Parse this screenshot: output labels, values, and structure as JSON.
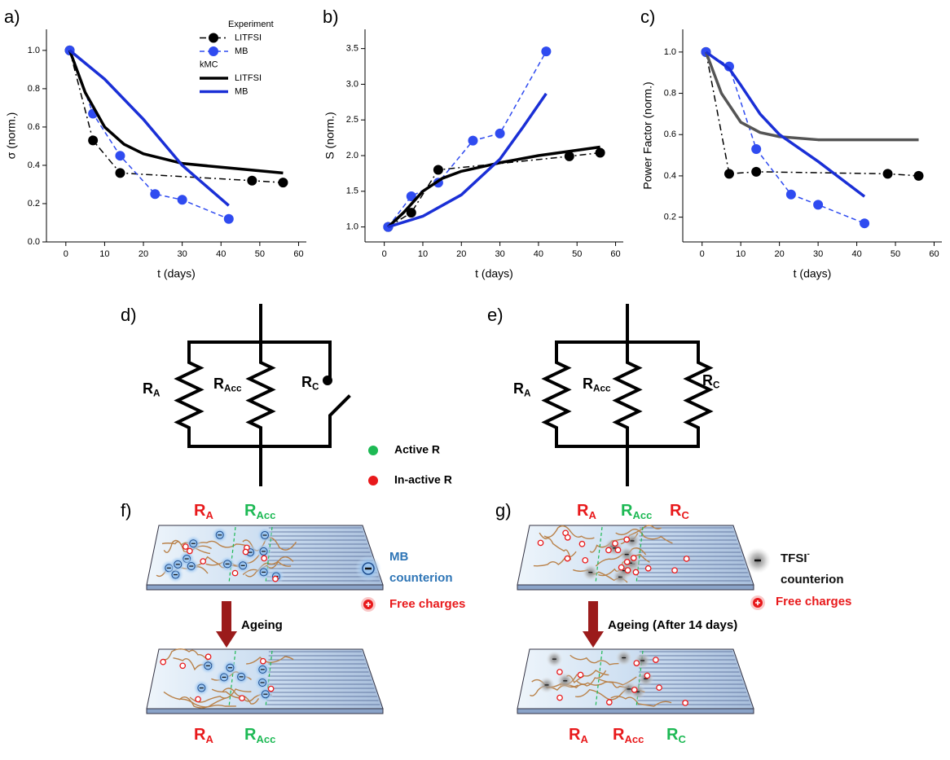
{
  "chart_data": [
    {
      "type": "line",
      "panel_label": "a)",
      "xlabel": "t (days)",
      "ylabel": "σ (norm.)",
      "xlim": [
        -5,
        62
      ],
      "xticks": [
        0,
        10,
        20,
        30,
        40,
        50,
        60
      ],
      "ylim": [
        0,
        1.11
      ],
      "yticks": [
        {
          "value": 0,
          "label": "0.0"
        },
        0.2,
        0.4,
        0.6,
        0.8,
        {
          "value": 1,
          "label": "1.0"
        }
      ],
      "series_groups": [
        {
          "name": "Experiment",
          "series": [
            {
              "name": "LITFSI",
              "color": "#000000",
              "dash": "dashdot",
              "marker": true,
              "x": [
                1,
                7,
                14,
                48,
                56
              ],
              "values": [
                1.0,
                0.53,
                0.36,
                0.32,
                0.31
              ]
            },
            {
              "name": "MB",
              "color": "#2f4bf0",
              "dash": "dashed",
              "marker": true,
              "x": [
                1,
                7,
                14,
                23,
                30,
                42
              ],
              "values": [
                1.0,
                0.67,
                0.45,
                0.25,
                0.22,
                0.12
              ]
            }
          ]
        },
        {
          "name": "kMC",
          "series": [
            {
              "name": "LITFSI",
              "color": "#000000",
              "dash": "solid",
              "marker": false,
              "x": [
                1,
                5,
                10,
                15,
                20,
                30,
                40,
                56
              ],
              "values": [
                1.0,
                0.78,
                0.6,
                0.51,
                0.46,
                0.41,
                0.39,
                0.36
              ]
            },
            {
              "name": "MB",
              "color": "#1a2fd6",
              "dash": "solid",
              "marker": false,
              "x": [
                1,
                10,
                20,
                30,
                42
              ],
              "values": [
                1.0,
                0.85,
                0.64,
                0.4,
                0.19
              ]
            }
          ]
        }
      ]
    },
    {
      "type": "line",
      "panel_label": "b)",
      "xlabel": "t (days)",
      "ylabel": "S (norm.)",
      "xlim": [
        -5,
        62
      ],
      "xticks": [
        0,
        10,
        20,
        30,
        40,
        50,
        60
      ],
      "ylim": [
        0.79,
        3.77
      ],
      "yticks": [
        {
          "value": 1,
          "label": "1.0"
        },
        1.5,
        {
          "value": 2,
          "label": "2.0"
        },
        2.5,
        {
          "value": 3,
          "label": "3.0"
        },
        3.5
      ],
      "series": [
        {
          "color": "#000000",
          "dash": "dashdot",
          "marker": true,
          "x": [
            1,
            7,
            14,
            48,
            56
          ],
          "values": [
            1.0,
            1.2,
            1.8,
            1.99,
            2.04
          ]
        },
        {
          "color": "#2f4bf0",
          "dash": "dashed",
          "marker": true,
          "x": [
            1,
            7,
            14,
            23,
            30,
            42
          ],
          "values": [
            1.0,
            1.43,
            1.62,
            2.21,
            2.31,
            3.46
          ]
        },
        {
          "color": "#000000",
          "dash": "solid",
          "marker": false,
          "x": [
            1,
            5,
            10,
            15,
            20,
            30,
            40,
            56
          ],
          "values": [
            1.0,
            1.2,
            1.5,
            1.68,
            1.78,
            1.9,
            2.0,
            2.12
          ]
        },
        {
          "color": "#1a2fd6",
          "dash": "solid",
          "marker": false,
          "x": [
            1,
            10,
            20,
            30,
            36,
            42
          ],
          "values": [
            1.0,
            1.15,
            1.45,
            1.95,
            2.4,
            2.87
          ]
        }
      ]
    },
    {
      "type": "line",
      "panel_label": "c)",
      "xlabel": "t (days)",
      "ylabel": "Power Factor (norm.)",
      "xlim": [
        -5,
        62
      ],
      "xticks": [
        0,
        10,
        20,
        30,
        40,
        50,
        60
      ],
      "ylim": [
        0.08,
        1.11
      ],
      "yticks": [
        0.2,
        0.4,
        0.6,
        0.8,
        {
          "value": 1,
          "label": "1.0"
        }
      ],
      "series": [
        {
          "color": "#000000",
          "dash": "dashdot",
          "marker": true,
          "x": [
            1,
            7,
            14,
            48,
            56
          ],
          "values": [
            1.0,
            0.41,
            0.42,
            0.41,
            0.4
          ]
        },
        {
          "color": "#2f4bf0",
          "dash": "dashed",
          "marker": true,
          "x": [
            1,
            7,
            14,
            23,
            30,
            42
          ],
          "values": [
            1.0,
            0.93,
            0.53,
            0.31,
            0.26,
            0.17
          ]
        },
        {
          "color": "#555555",
          "dash": "solid",
          "marker": false,
          "x": [
            1,
            5,
            10,
            15,
            20,
            30,
            40,
            56
          ],
          "values": [
            1.0,
            0.8,
            0.66,
            0.61,
            0.59,
            0.575,
            0.575,
            0.575
          ]
        },
        {
          "color": "#1a2fd6",
          "dash": "solid",
          "marker": false,
          "x": [
            1,
            7,
            10,
            15,
            20,
            30,
            42
          ],
          "values": [
            1.0,
            0.92,
            0.84,
            0.7,
            0.6,
            0.47,
            0.3
          ]
        }
      ]
    }
  ],
  "circuits": [
    {
      "label": "d)",
      "resistors": [
        {
          "main": "R",
          "sub": "A"
        },
        {
          "main": "R",
          "sub": "Acc"
        },
        {
          "main": "R",
          "sub": "C"
        }
      ]
    },
    {
      "label": "e)",
      "resistors": [
        {
          "main": "R",
          "sub": "A"
        },
        {
          "main": "R",
          "sub": "Acc"
        },
        {
          "main": "R",
          "sub": "C"
        }
      ]
    }
  ],
  "state_legend": [
    {
      "text": "Active R",
      "color": "#1db954"
    },
    {
      "text": "In-active R",
      "color": "#e8191b"
    }
  ],
  "devices": [
    {
      "label": "f)",
      "arrow_text": "Ageing",
      "top_labels": [
        {
          "main": "R",
          "sub": "A",
          "color": "#e8191b"
        },
        {
          "main": "R",
          "sub": "Acc",
          "color": "#1db954"
        }
      ],
      "bottom_labels": [
        {
          "main": "R",
          "sub": "A",
          "color": "#e8191b"
        },
        {
          "main": "R",
          "sub": "Acc",
          "color": "#1db954"
        }
      ],
      "key": [
        {
          "lines": [
            "MB",
            "counterion"
          ],
          "color": "#2e75b6"
        },
        {
          "lines": [
            "Free charges"
          ],
          "color": "#e8191b"
        }
      ]
    },
    {
      "label": "g)",
      "arrow_text": "Ageing (After 14 days)",
      "top_labels": [
        {
          "main": "R",
          "sub": "A",
          "color": "#e8191b"
        },
        {
          "main": "R",
          "sub": "Acc",
          "color": "#1db954"
        },
        {
          "main": "R",
          "sub": "C",
          "color": "#e8191b"
        }
      ],
      "bottom_labels": [
        {
          "main": "R",
          "sub": "A",
          "color": "#e8191b"
        },
        {
          "main": "R",
          "sub": "Acc",
          "color": "#e8191b"
        },
        {
          "main": "R",
          "sub": "C",
          "color": "#1db954"
        }
      ],
      "key": [
        {
          "lines": [
            "TFSI",
            "counterion"
          ],
          "sup": "-",
          "color": "#111111"
        },
        {
          "lines": [
            "Free charges"
          ],
          "color": "#e8191b"
        }
      ]
    }
  ]
}
